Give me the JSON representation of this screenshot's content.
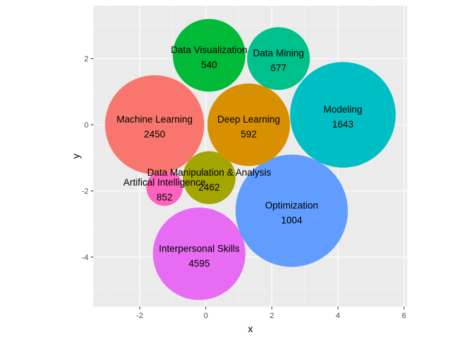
{
  "chart_data": {
    "type": "scatter",
    "subtype": "packed-bubble",
    "xlabel": "x",
    "ylabel": "y",
    "xlim": [
      -3.4,
      6.1
    ],
    "ylim": [
      3.6,
      -5.5
    ],
    "y_reversed": true,
    "x_ticks": [
      -2,
      0,
      2,
      4,
      6
    ],
    "y_ticks": [
      -4,
      -2,
      0,
      2
    ],
    "grid": true,
    "legend": "none",
    "bubbles": [
      {
        "label": "Interpersonal Skills",
        "value": "4595",
        "x": -0.2,
        "y": -3.9,
        "r": 1.4,
        "color": "#E76BF3"
      },
      {
        "label": "Optimization",
        "value": "1004",
        "x": 2.6,
        "y": -2.6,
        "r": 1.7,
        "color": "#619CFF"
      },
      {
        "label": "Artifical Intelligence",
        "value": "852",
        "x": -1.25,
        "y": -1.9,
        "r": 0.55,
        "color": "#FF62BC"
      },
      {
        "label": "Data Manipulation & Analysis",
        "value": "2462",
        "x": 0.1,
        "y": -1.6,
        "r": 0.8,
        "color": "#A3A500"
      },
      {
        "label": "Machine Learning",
        "value": "2450",
        "x": -1.55,
        "y": 0.0,
        "r": 1.5,
        "color": "#F8766D"
      },
      {
        "label": "Deep Learning",
        "value": "592",
        "x": 1.3,
        "y": 0.0,
        "r": 1.25,
        "color": "#D89000"
      },
      {
        "label": "Modeling",
        "value": "1643",
        "x": 4.15,
        "y": 0.3,
        "r": 1.6,
        "color": "#00BFC4"
      },
      {
        "label": "Data Visualization",
        "value": "540",
        "x": 0.1,
        "y": 2.1,
        "r": 1.1,
        "color": "#00BA38"
      },
      {
        "label": "Data Mining",
        "value": "677",
        "x": 2.2,
        "y": 2.0,
        "r": 0.95,
        "color": "#00C08B"
      }
    ]
  },
  "colors": {
    "panel": "#EBEBEB",
    "grid_major": "#FFFFFF",
    "grid_minor": "#F5F5F5"
  }
}
